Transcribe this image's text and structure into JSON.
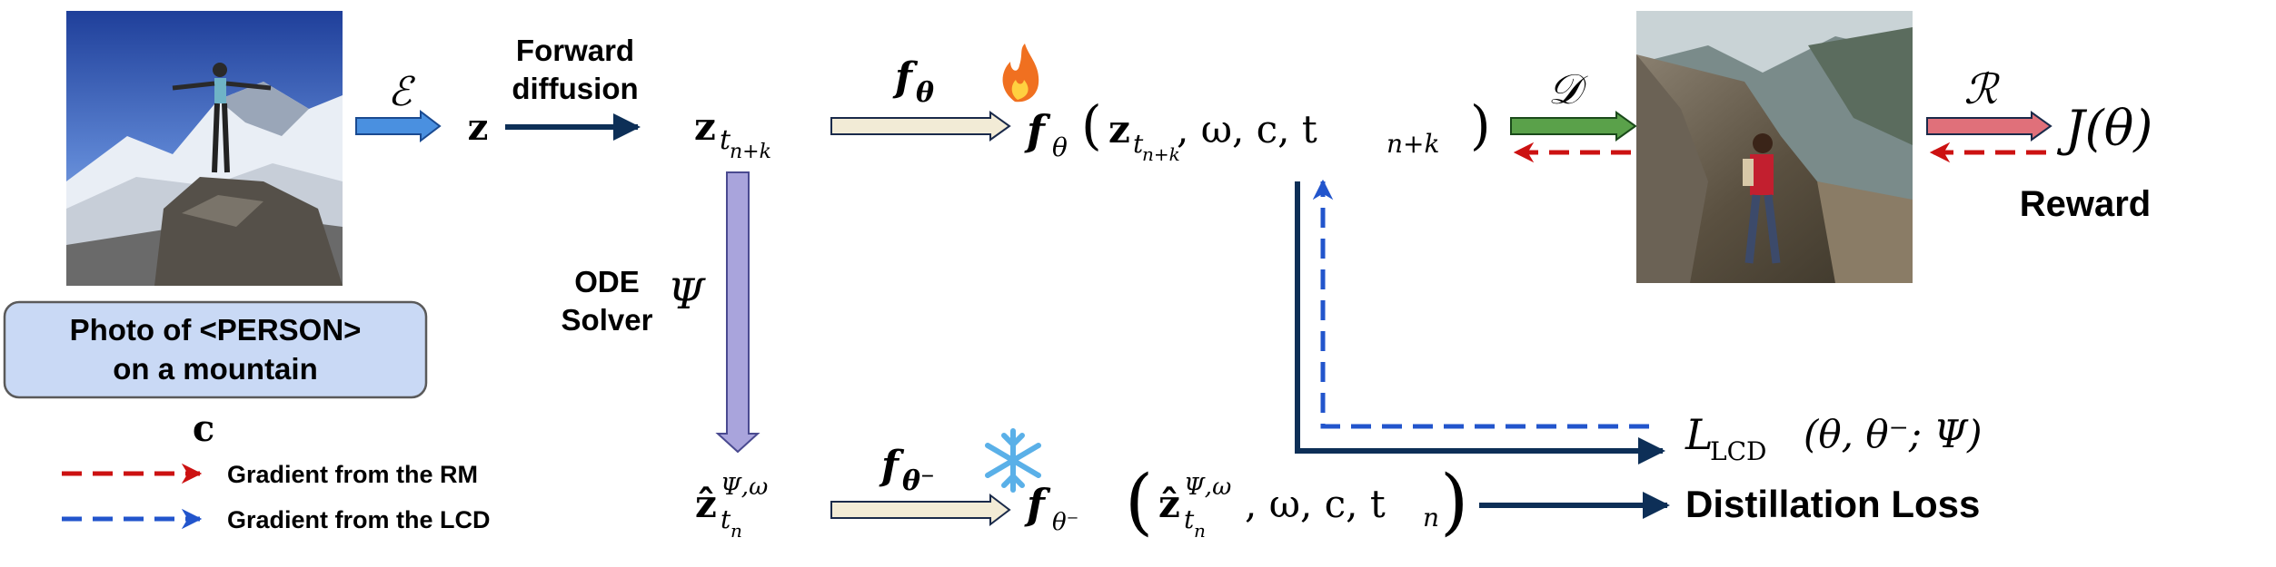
{
  "prompt": {
    "line1": "Photo of <PERSON>",
    "line2": "on a mountain"
  },
  "cond_symbol": "c",
  "encoder_symbol": "ℰ",
  "z_symbol": "z",
  "forward_label": {
    "line1": "Forward",
    "line2": "diffusion"
  },
  "z_tnk": {
    "base": "z",
    "sub": "t",
    "subsub": "n+k"
  },
  "ode_label": {
    "line1": "ODE",
    "line2": "Solver"
  },
  "psi_symbol": "Ψ",
  "f_theta_label": {
    "base": "f",
    "sub": "θ"
  },
  "f_theta_minus_label": {
    "base": "f",
    "sub": "θ⁻"
  },
  "f_theta_expr": {
    "f": "f",
    "sub": "θ",
    "args": ", ω, c, t",
    "args_sub": "n+k"
  },
  "zhat": {
    "base": "ẑ",
    "sup": "Ψ,ω",
    "sub": "t",
    "subsub": "n"
  },
  "f_minus_expr": {
    "f": "f",
    "sub": "θ⁻",
    "args": ", ω, c, t",
    "args_sub": "n"
  },
  "decoder_symbol": "𝒟",
  "reward_symbol": "ℛ",
  "j_theta": "J(θ)",
  "reward_label": "Reward",
  "lcd_loss": {
    "base": "L",
    "sub": "LCD",
    "args": "(θ, θ⁻; Ψ)"
  },
  "distill_label": "Distillation Loss",
  "legend": [
    {
      "label": "Gradient from the RM",
      "color": "#cc1111"
    },
    {
      "label": "Gradient from the LCD",
      "color": "#2255cc"
    }
  ],
  "colors": {
    "prompt_fill": "#c9d9f5",
    "prompt_stroke": "#5a5a5a",
    "encoder_arrow": "#4a90e0",
    "dark_arrow": "#0d2f57",
    "ode_arrow": "#a9a4dc",
    "f_arrow": "#f2ebd6",
    "decoder_arrow": "#5aa14a",
    "reward_arrow": "#e0707a",
    "red_grad": "#cc1111",
    "blue_grad": "#2255cc",
    "fire": "#f07020",
    "snow": "#5ab0e8"
  },
  "icons": {
    "fire": "fire-icon",
    "snow": "snowflake-icon"
  }
}
